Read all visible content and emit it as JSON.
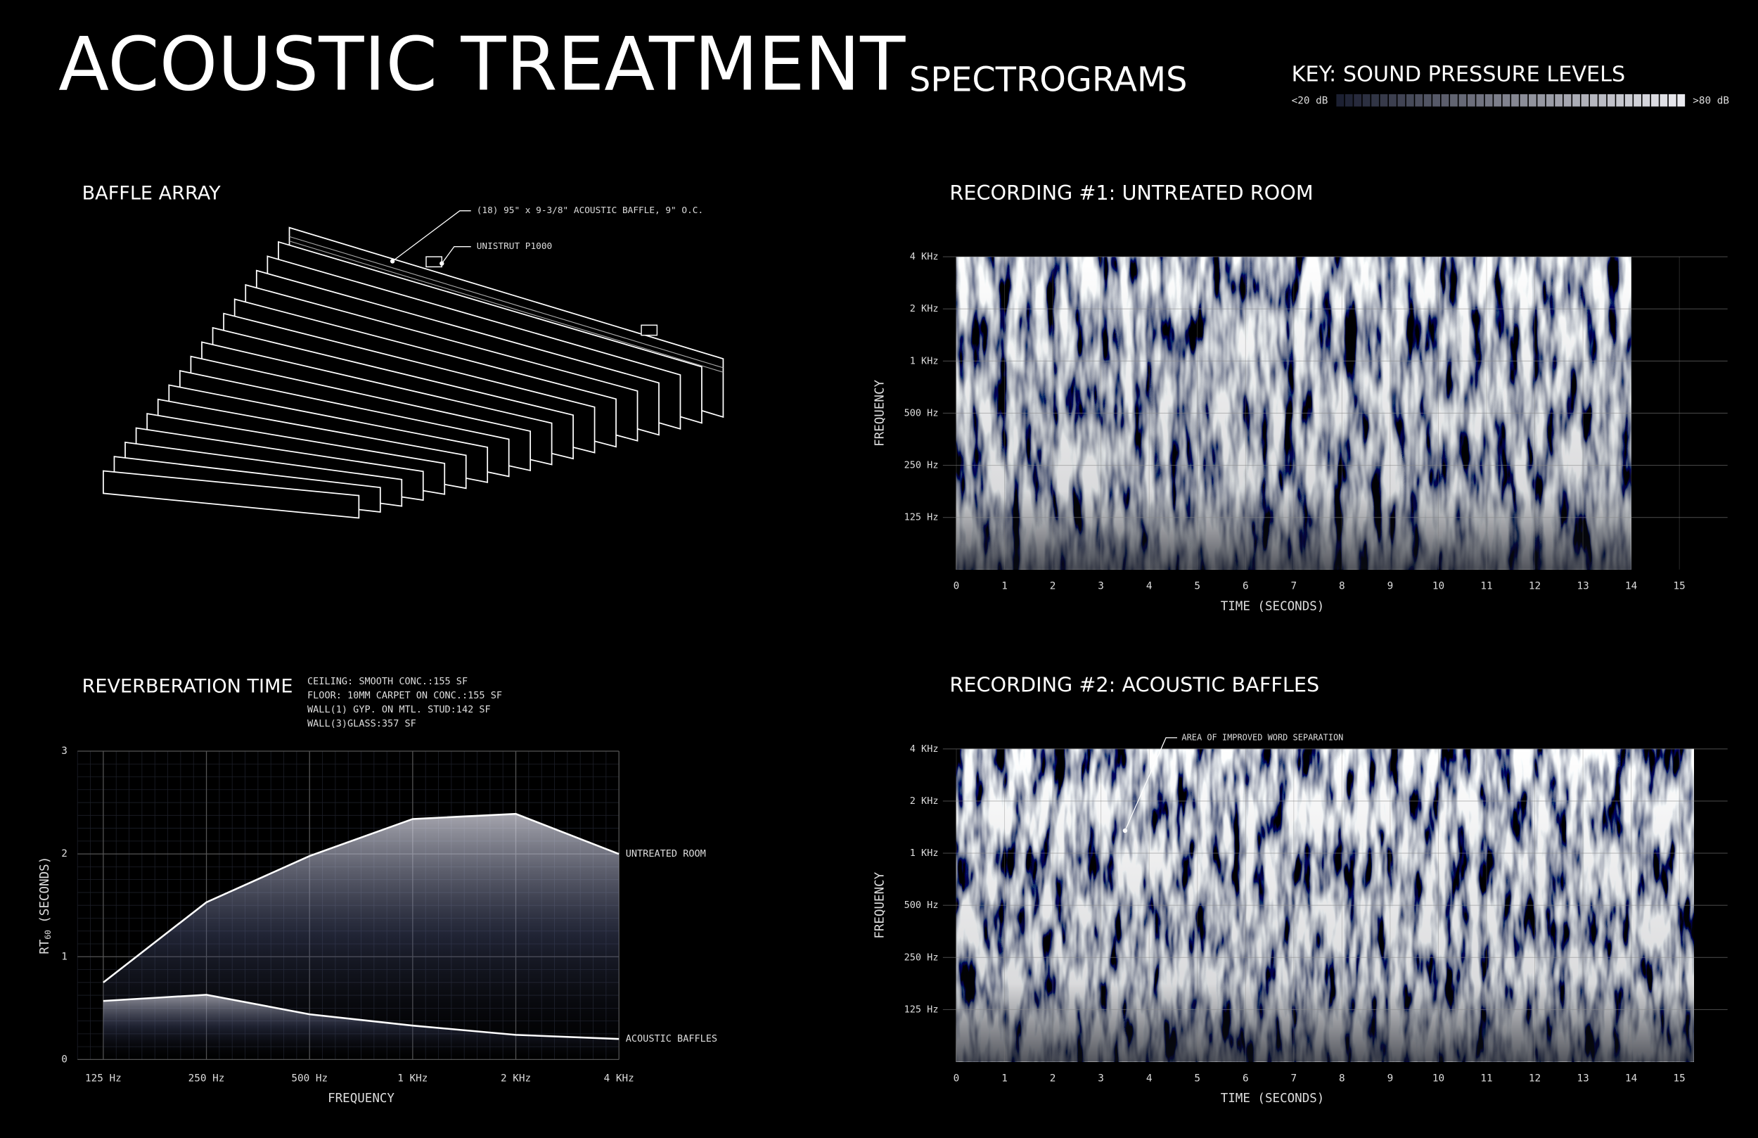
{
  "title": "ACOUSTIC TREATMENT",
  "spectrograms_title": "SPECTROGRAMS",
  "key": {
    "title": "KEY: SOUND PRESSURE LEVELS",
    "min_label": "<20 dB",
    "max_label": ">80 dB"
  },
  "baffle_array": {
    "title": "BAFFLE ARRAY",
    "callouts": [
      "(18) 95\" x 9-3/8\" ACOUSTIC BAFFLE, 9\" O.C.",
      "UNISTRUT P1000"
    ]
  },
  "chart_data": [
    {
      "type": "line",
      "title": "REVERBERATION TIME",
      "notes": [
        "CEILING: SMOOTH CONC.:155 SF",
        "FLOOR: 10MM CARPET ON CONC.:155 SF",
        "WALL(1) GYP. ON MTL. STUD:142 SF",
        "WALL(3)GLASS:357 SF"
      ],
      "xlabel": "FREQUENCY",
      "ylabel": "RT",
      "ylabel_subscript": "60",
      "ylabel_suffix": "(SECONDS)",
      "categories": [
        "125 Hz",
        "250 Hz",
        "500 Hz",
        "1 KHz",
        "2 KHz",
        "4 KHz"
      ],
      "series": [
        {
          "name": "UNTREATED ROOM",
          "color": "#ffffff",
          "values": [
            0.75,
            1.53,
            1.98,
            2.34,
            2.39,
            2.0
          ]
        },
        {
          "name": "ACOUSTIC BAFFLES",
          "color": "#ffffff",
          "values": [
            0.57,
            0.63,
            0.44,
            0.33,
            0.24,
            0.2
          ]
        }
      ],
      "ylim": [
        0,
        3
      ],
      "yticks": [
        0,
        1,
        2,
        3
      ],
      "grid": true
    },
    {
      "type": "spectrogram",
      "title": "RECORDING #1: UNTREATED ROOM",
      "xlabel": "TIME (SECONDS)",
      "ylabel": "FREQUENCY",
      "xlim": [
        0,
        16
      ],
      "xticks": [
        0,
        1,
        2,
        3,
        4,
        5,
        6,
        7,
        8,
        9,
        10,
        11,
        12,
        13,
        14,
        15
      ],
      "ylim": [
        62.5,
        4000
      ],
      "ylog": true,
      "yticks": [
        {
          "value": 125,
          "label": "125 Hz"
        },
        {
          "value": 250,
          "label": "250 Hz"
        },
        {
          "value": 500,
          "label": "500 Hz"
        },
        {
          "value": 1000,
          "label": "1 KHz"
        },
        {
          "value": 2000,
          "label": "2 KHz"
        },
        {
          "value": 4000,
          "label": "4 KHz"
        }
      ],
      "duration": 14,
      "grid": true
    },
    {
      "type": "spectrogram",
      "title": "RECORDING #2: ACOUSTIC BAFFLES",
      "xlabel": "TIME (SECONDS)",
      "ylabel": "FREQUENCY",
      "xlim": [
        0,
        16
      ],
      "xticks": [
        0,
        1,
        2,
        3,
        4,
        5,
        6,
        7,
        8,
        9,
        10,
        11,
        12,
        13,
        14,
        15
      ],
      "ylim": [
        62.5,
        4000
      ],
      "ylog": true,
      "yticks": [
        {
          "value": 125,
          "label": "125 Hz"
        },
        {
          "value": 250,
          "label": "250 Hz"
        },
        {
          "value": 500,
          "label": "500 Hz"
        },
        {
          "value": 1000,
          "label": "1 KHz"
        },
        {
          "value": 2000,
          "label": "2 KHz"
        },
        {
          "value": 4000,
          "label": "4 KHz"
        }
      ],
      "duration": 15.3,
      "annotation": {
        "text": "AREA OF IMPROVED WORD SEPARATION",
        "x": 3.5,
        "y": 1350
      },
      "grid": true
    }
  ]
}
